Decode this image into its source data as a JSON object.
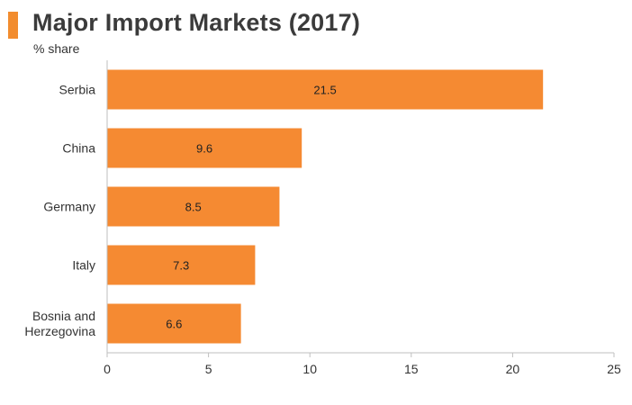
{
  "colors": {
    "accent": "#f28c2e",
    "bar": "#f58a32",
    "axis": "#bfbfbf",
    "text": "#333333"
  },
  "chart_data": {
    "type": "bar",
    "orientation": "horizontal",
    "title": "Major Import Markets (2017)",
    "subtitle": "% share",
    "categories": [
      [
        "Serbia"
      ],
      [
        "China"
      ],
      [
        "Germany"
      ],
      [
        "Italy"
      ],
      [
        "Bosnia and",
        "Herzegovina"
      ]
    ],
    "values": [
      21.5,
      9.6,
      8.5,
      7.3,
      6.6
    ],
    "data_labels": [
      "21.5",
      "9.6",
      "8.5",
      "7.3",
      "6.6"
    ],
    "xlim": [
      0,
      25
    ],
    "xticks": [
      0,
      5,
      10,
      15,
      20,
      25
    ],
    "grid": false,
    "legend": "none"
  }
}
